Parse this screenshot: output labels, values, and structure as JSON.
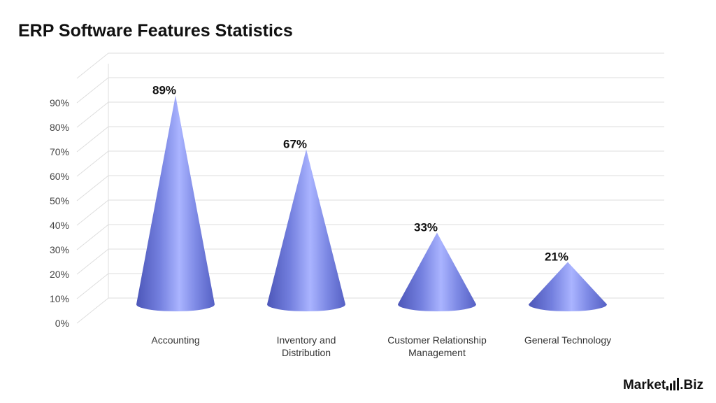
{
  "title": "ERP Software Features Statistics",
  "brand": {
    "name_left": "Market",
    "name_right": ".Biz"
  },
  "colors": {
    "cone_dark": "#5b67c9",
    "cone_mid": "#7f8be6",
    "cone_light": "#b3bcff",
    "grid": "#dddddd"
  },
  "chart_data": {
    "type": "bar",
    "style": "3d-cone",
    "title": "ERP Software Features Statistics",
    "categories": [
      [
        "Accounting"
      ],
      [
        "Inventory and",
        "Distribution"
      ],
      [
        "Customer Relationship",
        "Management"
      ],
      [
        "General Technology"
      ]
    ],
    "values": [
      89,
      67,
      33,
      21
    ],
    "value_labels": [
      "89%",
      "67%",
      "33%",
      "21%"
    ],
    "ylim": [
      0,
      90
    ],
    "yticks": [
      0,
      10,
      20,
      30,
      40,
      50,
      60,
      70,
      80,
      90
    ],
    "ytick_labels": [
      "0%",
      "10%",
      "20%",
      "30%",
      "40%",
      "50%",
      "60%",
      "70%",
      "80%",
      "90%"
    ],
    "grid": true,
    "legend": "none"
  }
}
